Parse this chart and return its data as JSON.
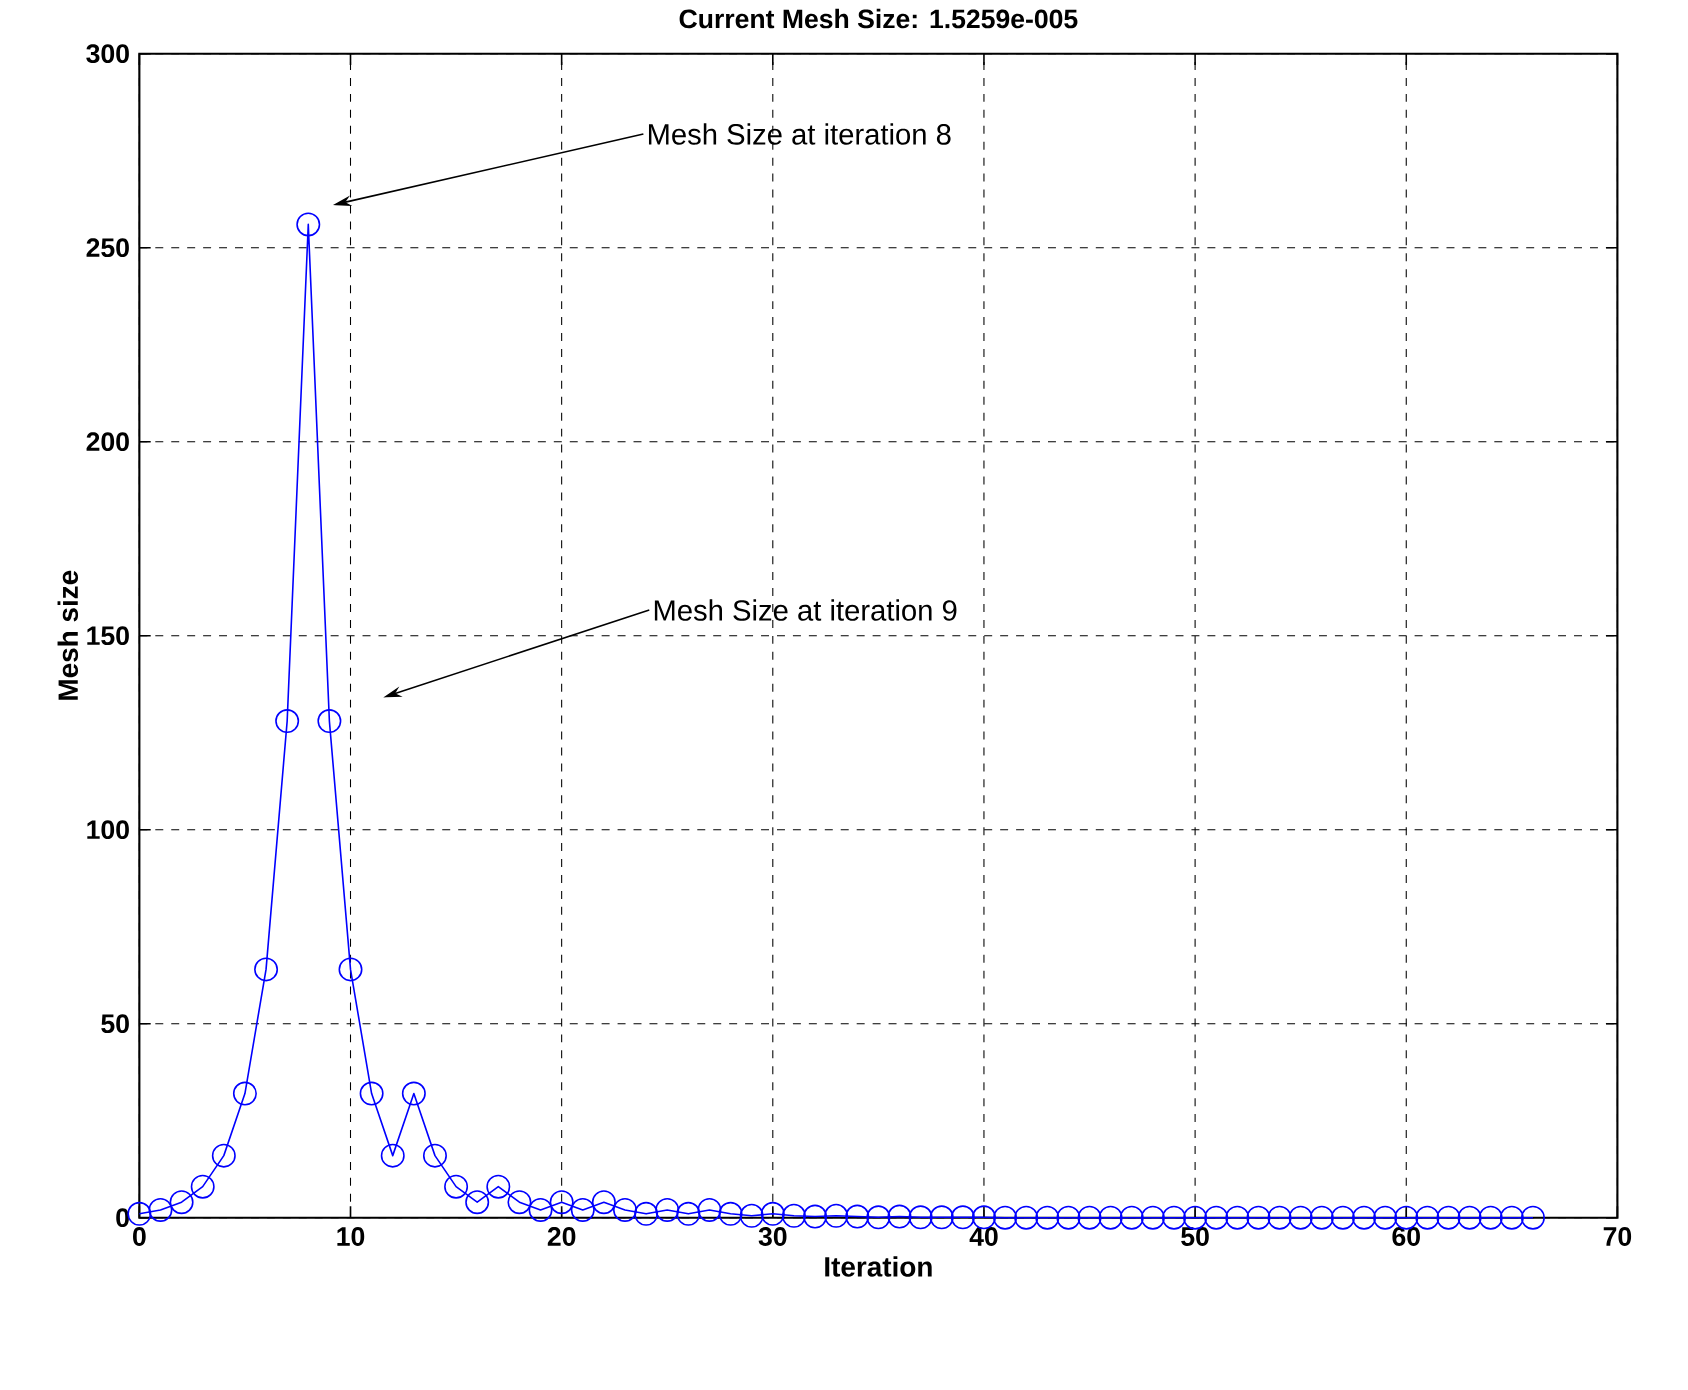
{
  "chart_data": {
    "type": "line",
    "title": "Current Mesh Size: 1.5259e-005",
    "xlabel": "Iteration",
    "ylabel": "Mesh size",
    "x": [
      0,
      1,
      2,
      3,
      4,
      5,
      6,
      7,
      8,
      9,
      10,
      11,
      12,
      13,
      14,
      15,
      16,
      17,
      18,
      19,
      20,
      21,
      22,
      23,
      24,
      25,
      26,
      27,
      28,
      29,
      30,
      31,
      32,
      33,
      34,
      35,
      36,
      37,
      38,
      39,
      40,
      41,
      42,
      43,
      44,
      45,
      46,
      47,
      48,
      49,
      50,
      51,
      52,
      53,
      54,
      55,
      56,
      57,
      58,
      59,
      60,
      61,
      62,
      63,
      64,
      65,
      66
    ],
    "series": [
      {
        "color": "#0000ff",
        "values": [
          1,
          2,
          4,
          8,
          16,
          32,
          64,
          128,
          256,
          128,
          64,
          32,
          16,
          32,
          16,
          8,
          4,
          8,
          4,
          2,
          4,
          2,
          4,
          2,
          1,
          2,
          1,
          2,
          1,
          0.5,
          1,
          0.5,
          0.3,
          0.5,
          0.3,
          0.1,
          0.3,
          0.1,
          0.1,
          0.1,
          0.1,
          0,
          0,
          0,
          0,
          0,
          0,
          0,
          0,
          0,
          0,
          0,
          0,
          0,
          0,
          0,
          0,
          0,
          0,
          0,
          0,
          0,
          0,
          0,
          0,
          0,
          0
        ]
      }
    ],
    "xlim": [
      0,
      70
    ],
    "ylim": [
      0,
      300
    ],
    "xticks": [
      0,
      10,
      20,
      30,
      40,
      50,
      60,
      70
    ],
    "yticks": [
      0,
      50,
      100,
      150,
      200,
      250,
      300
    ],
    "grid": true,
    "marker": "circle",
    "line_style": "solid",
    "annotations": [
      "Mesh Size at iteration 8",
      "Mesh Size at iteration 9"
    ]
  }
}
